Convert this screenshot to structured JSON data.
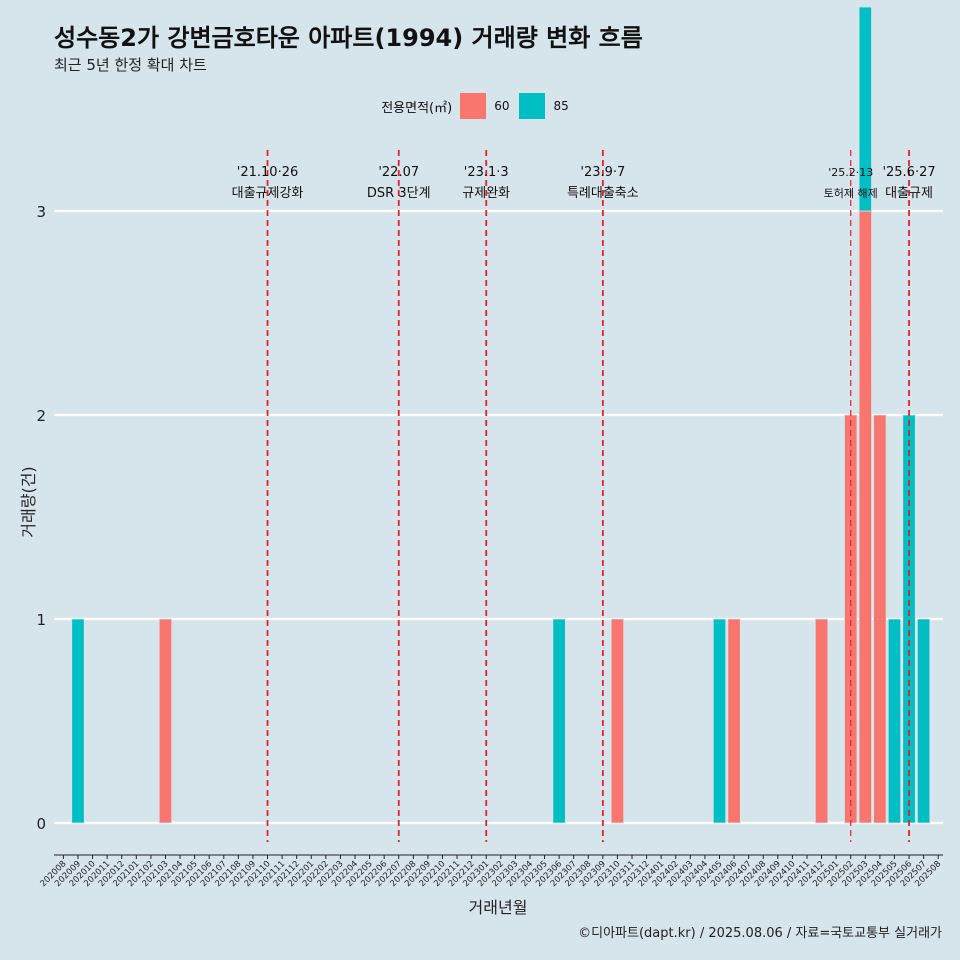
{
  "title": "성수동2가 강변금호타운 아파트(1994) 거래량 변화 흐름",
  "subtitle": "최근 5년 한정 확대 차트",
  "legend": {
    "title": "전용면적(㎡)",
    "items": [
      {
        "label": "60"
      },
      {
        "label": "85"
      }
    ]
  },
  "caption": "©디아파트(dapt.kr) / 2025.08.06 / 자료=국토교통부 실거래가",
  "colors": {
    "60": "#f8766d",
    "85": "#00bfc4",
    "background": "#d6e4eb",
    "event_line": "#e8202a"
  },
  "chart_data": {
    "type": "bar",
    "xlabel": "거래년월",
    "ylabel": "거래량(건)",
    "ylim": [
      0,
      3
    ],
    "y_ticks": [
      0,
      1,
      2,
      3
    ],
    "categories": [
      "202008",
      "202009",
      "202010",
      "202011",
      "202012",
      "202101",
      "202102",
      "202103",
      "202104",
      "202105",
      "202106",
      "202107",
      "202108",
      "202109",
      "202110",
      "202111",
      "202112",
      "202201",
      "202202",
      "202203",
      "202204",
      "202205",
      "202206",
      "202207",
      "202208",
      "202209",
      "202210",
      "202211",
      "202212",
      "202301",
      "202302",
      "202303",
      "202304",
      "202305",
      "202306",
      "202307",
      "202308",
      "202309",
      "202310",
      "202311",
      "202312",
      "202401",
      "202402",
      "202403",
      "202404",
      "202405",
      "202406",
      "202407",
      "202408",
      "202409",
      "202410",
      "202411",
      "202412",
      "202501",
      "202502",
      "202503",
      "202504",
      "202505",
      "202506",
      "202507",
      "202508"
    ],
    "series": [
      {
        "name": "60",
        "color": "#f8766d",
        "points": [
          {
            "x": "202103",
            "y": 1
          },
          {
            "x": "202310",
            "y": 1
          },
          {
            "x": "202406",
            "y": 1
          },
          {
            "x": "202412",
            "y": 1
          },
          {
            "x": "202502",
            "y": 2
          },
          {
            "x": "202503",
            "y": 3
          },
          {
            "x": "202504",
            "y": 2
          }
        ]
      },
      {
        "name": "85",
        "color": "#00bfc4",
        "points": [
          {
            "x": "202009",
            "y": 1
          },
          {
            "x": "202306",
            "y": 1
          },
          {
            "x": "202405",
            "y": 1
          },
          {
            "x": "202503",
            "y": 1
          },
          {
            "x": "202505",
            "y": 1
          },
          {
            "x": "202506",
            "y": 2
          },
          {
            "x": "202507",
            "y": 1
          }
        ]
      }
    ],
    "events": [
      {
        "category": "202110",
        "date": "'21.10·26",
        "label": "대출규제강화"
      },
      {
        "category": "202207",
        "date": "'22.07",
        "label": "DSR 3단계"
      },
      {
        "category": "202301",
        "date": "'23.1·3",
        "label": "규제완화"
      },
      {
        "category": "202309",
        "date": "'23.9·7",
        "label": "특례대출축소"
      },
      {
        "category": "202502",
        "date": "'25.2·13",
        "label": "토허제 해제"
      },
      {
        "category": "202506",
        "date": "'25.6·27",
        "label": "대출규제"
      }
    ]
  }
}
